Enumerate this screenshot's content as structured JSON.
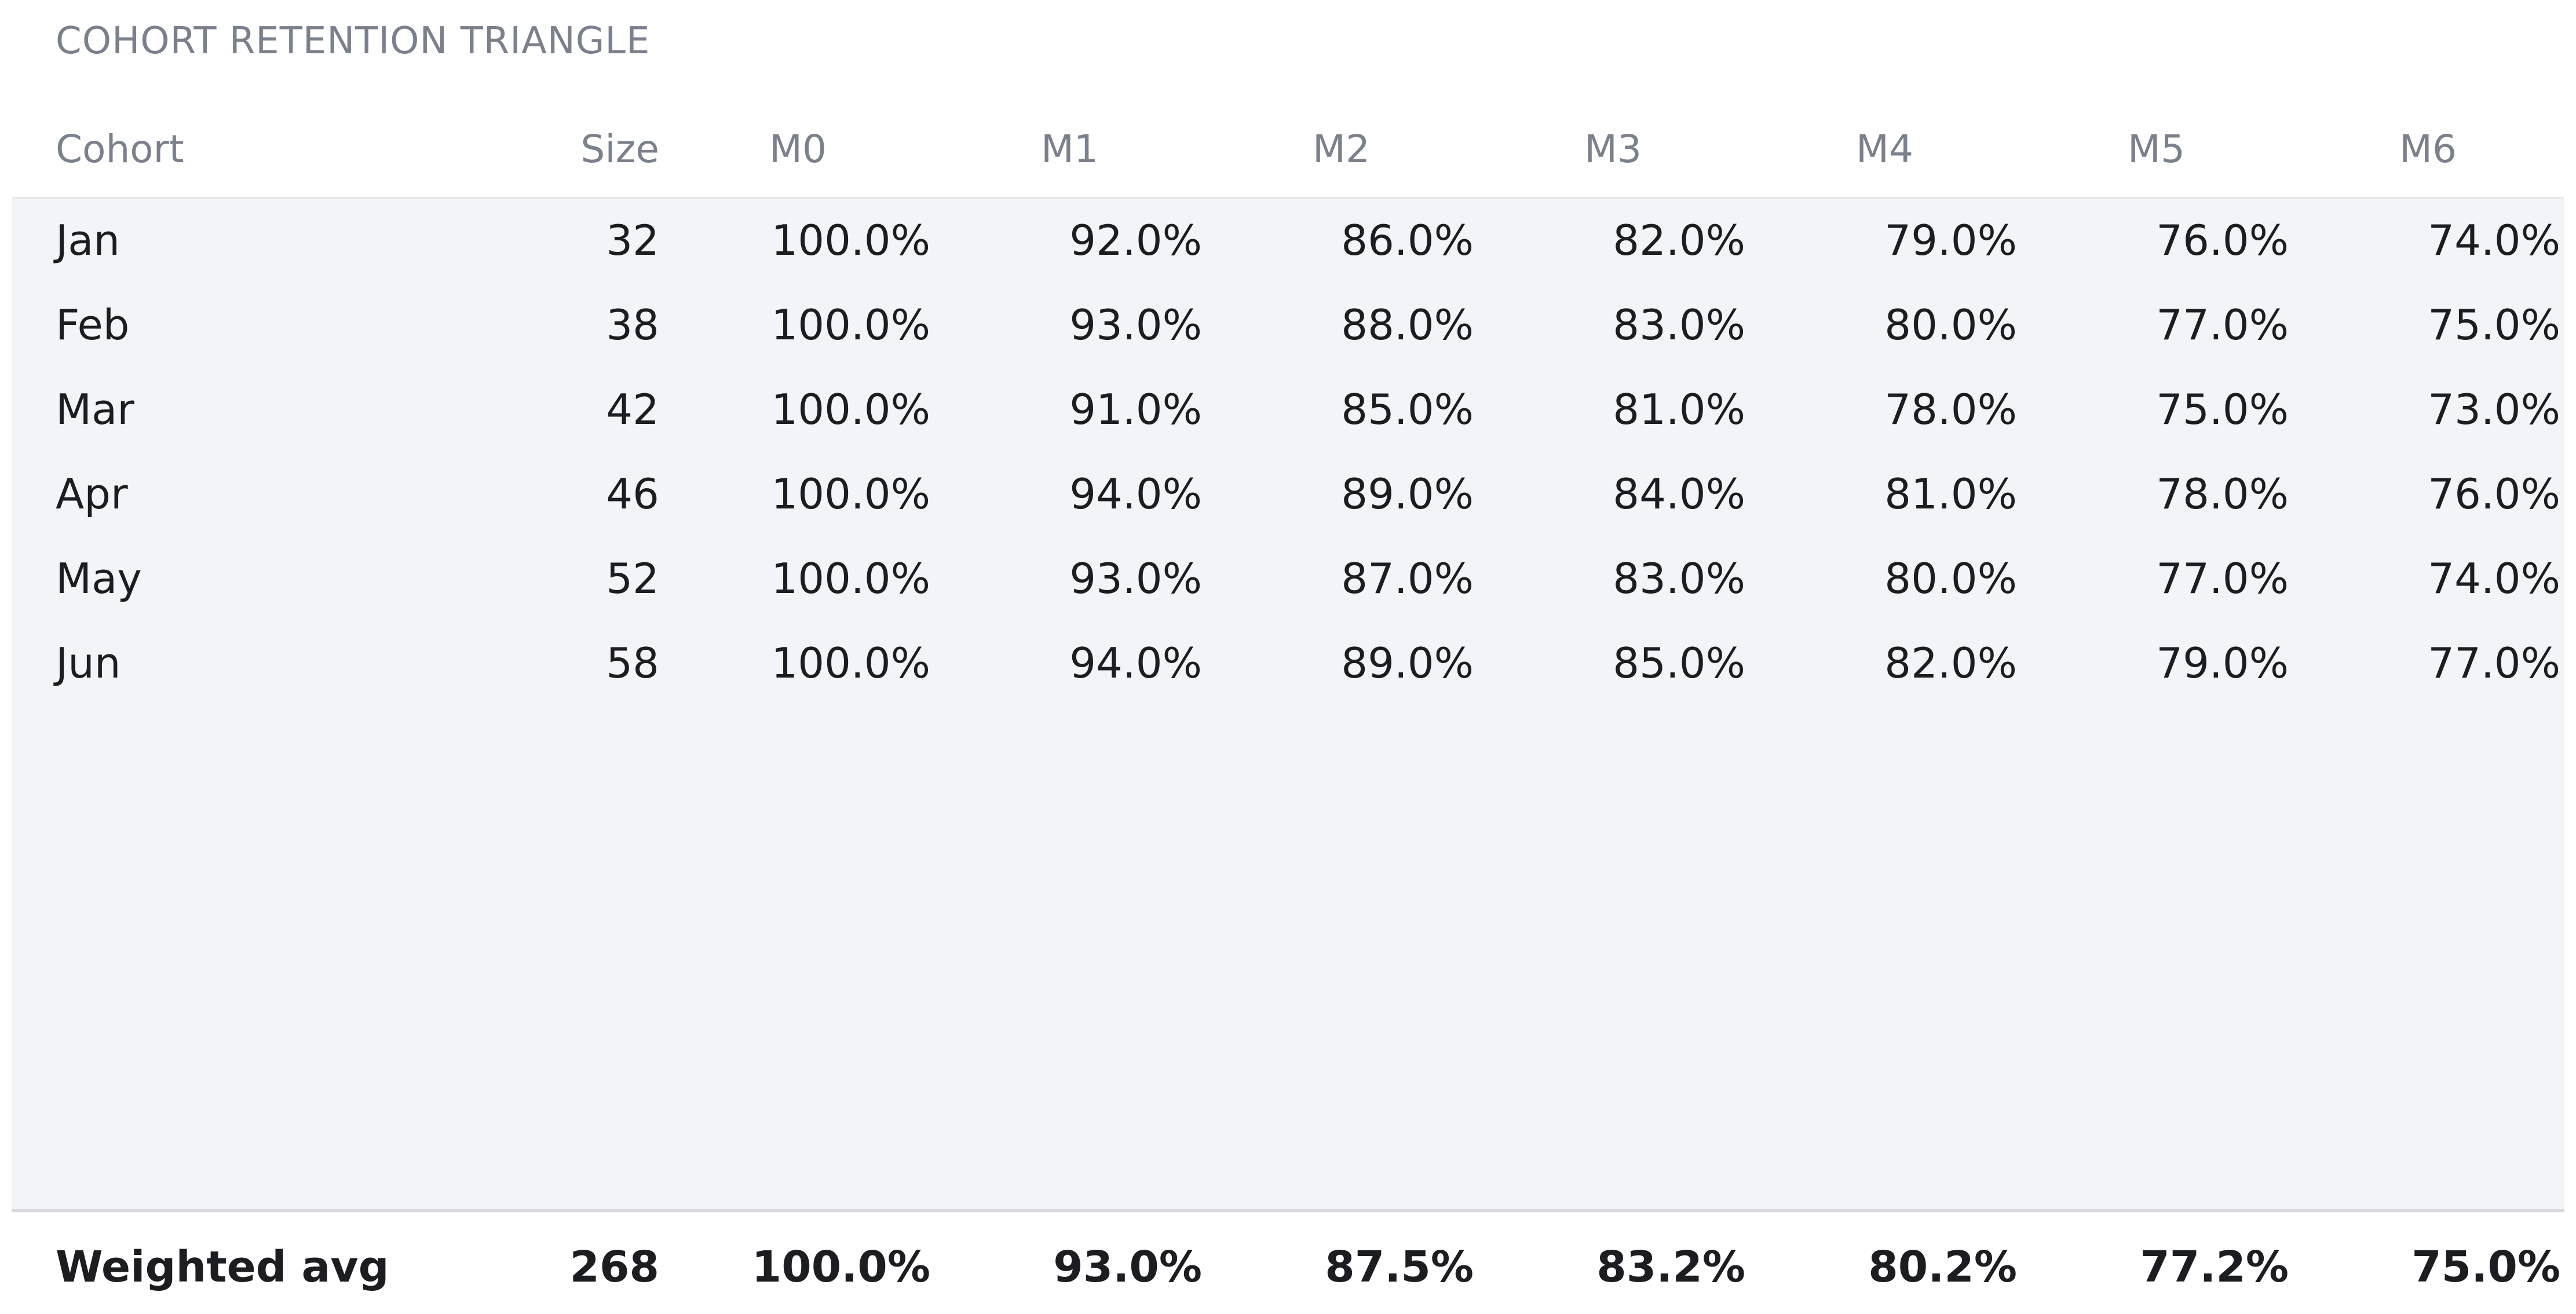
{
  "title": "COHORT RETENTION TRIANGLE",
  "columns": {
    "cohort": "Cohort",
    "size": "Size",
    "months": [
      "M0",
      "M1",
      "M2",
      "M3",
      "M4",
      "M5",
      "M6"
    ]
  },
  "rows": [
    {
      "cohort": "Jan",
      "size": "32",
      "values": [
        "100.0%",
        "92.0%",
        "86.0%",
        "82.0%",
        "79.0%",
        "76.0%",
        "74.0%"
      ]
    },
    {
      "cohort": "Feb",
      "size": "38",
      "values": [
        "100.0%",
        "93.0%",
        "88.0%",
        "83.0%",
        "80.0%",
        "77.0%",
        "75.0%"
      ]
    },
    {
      "cohort": "Mar",
      "size": "42",
      "values": [
        "100.0%",
        "91.0%",
        "85.0%",
        "81.0%",
        "78.0%",
        "75.0%",
        "73.0%"
      ]
    },
    {
      "cohort": "Apr",
      "size": "46",
      "values": [
        "100.0%",
        "94.0%",
        "89.0%",
        "84.0%",
        "81.0%",
        "78.0%",
        "76.0%"
      ]
    },
    {
      "cohort": "May",
      "size": "52",
      "values": [
        "100.0%",
        "93.0%",
        "87.0%",
        "83.0%",
        "80.0%",
        "77.0%",
        "74.0%"
      ]
    },
    {
      "cohort": "Jun",
      "size": "58",
      "values": [
        "100.0%",
        "94.0%",
        "89.0%",
        "85.0%",
        "82.0%",
        "79.0%",
        "77.0%"
      ]
    }
  ],
  "footer": {
    "label": "Weighted avg",
    "size": "268",
    "values": [
      "100.0%",
      "93.0%",
      "87.5%",
      "83.2%",
      "80.2%",
      "77.2%",
      "75.0%"
    ]
  }
}
